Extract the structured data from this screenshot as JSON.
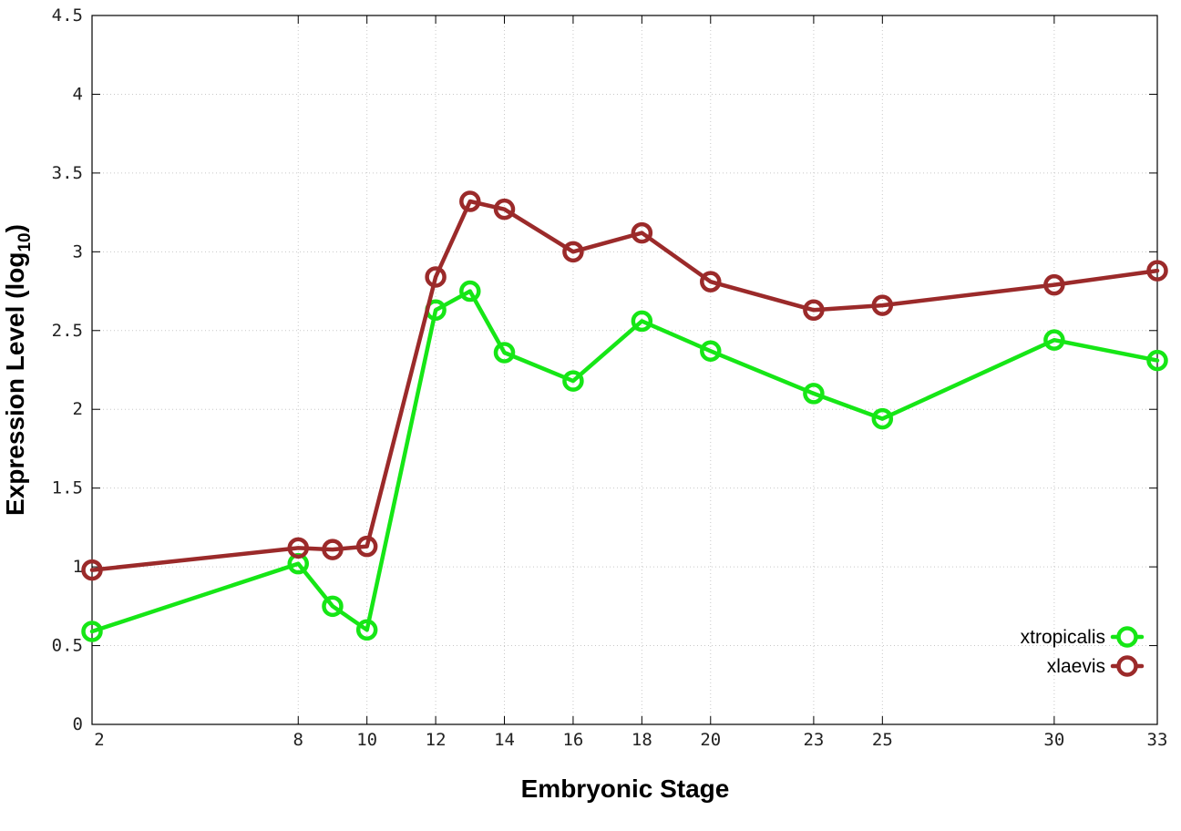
{
  "chart_data": {
    "type": "line",
    "xlabel": "Embryonic Stage",
    "ylabel_main": "Expression Level (log",
    "ylabel_sub": "10",
    "ylabel_close": ")",
    "xlim": [
      2,
      33
    ],
    "ylim": [
      0,
      4.5
    ],
    "x_ticks": [
      2,
      8,
      10,
      12,
      14,
      16,
      18,
      20,
      23,
      25,
      30,
      33
    ],
    "y_ticks": [
      {
        "value": 0,
        "label": "0"
      },
      {
        "value": 0.5,
        "label": "0.5"
      },
      {
        "value": 1,
        "label": "1"
      },
      {
        "value": 1.5,
        "label": "1.5"
      },
      {
        "value": 2,
        "label": "2"
      },
      {
        "value": 2.5,
        "label": "2.5"
      },
      {
        "value": 3,
        "label": "3"
      },
      {
        "value": 3.5,
        "label": "3.5"
      },
      {
        "value": 4,
        "label": "4"
      },
      {
        "value": 4.5,
        "label": "4.5"
      }
    ],
    "grid": true,
    "legend_position": "bottom-right",
    "series": [
      {
        "name": "xtropicalis",
        "color": "#16e616",
        "points": [
          {
            "x": 2,
            "y": 0.59
          },
          {
            "x": 8,
            "y": 1.02
          },
          {
            "x": 9,
            "y": 0.75
          },
          {
            "x": 10,
            "y": 0.6
          },
          {
            "x": 12,
            "y": 2.63
          },
          {
            "x": 13,
            "y": 2.75
          },
          {
            "x": 14,
            "y": 2.36
          },
          {
            "x": 16,
            "y": 2.18
          },
          {
            "x": 18,
            "y": 2.56
          },
          {
            "x": 20,
            "y": 2.37
          },
          {
            "x": 23,
            "y": 2.1
          },
          {
            "x": 25,
            "y": 1.94
          },
          {
            "x": 30,
            "y": 2.44
          },
          {
            "x": 33,
            "y": 2.31
          }
        ]
      },
      {
        "name": "xlaevis",
        "color": "#9b2a2a",
        "points": [
          {
            "x": 2,
            "y": 0.98
          },
          {
            "x": 8,
            "y": 1.12
          },
          {
            "x": 9,
            "y": 1.11
          },
          {
            "x": 10,
            "y": 1.13
          },
          {
            "x": 12,
            "y": 2.84
          },
          {
            "x": 13,
            "y": 3.32
          },
          {
            "x": 14,
            "y": 3.27
          },
          {
            "x": 16,
            "y": 3.0
          },
          {
            "x": 18,
            "y": 3.12
          },
          {
            "x": 20,
            "y": 2.81
          },
          {
            "x": 23,
            "y": 2.63
          },
          {
            "x": 25,
            "y": 2.66
          },
          {
            "x": 30,
            "y": 2.79
          },
          {
            "x": 33,
            "y": 2.88
          }
        ]
      }
    ]
  }
}
